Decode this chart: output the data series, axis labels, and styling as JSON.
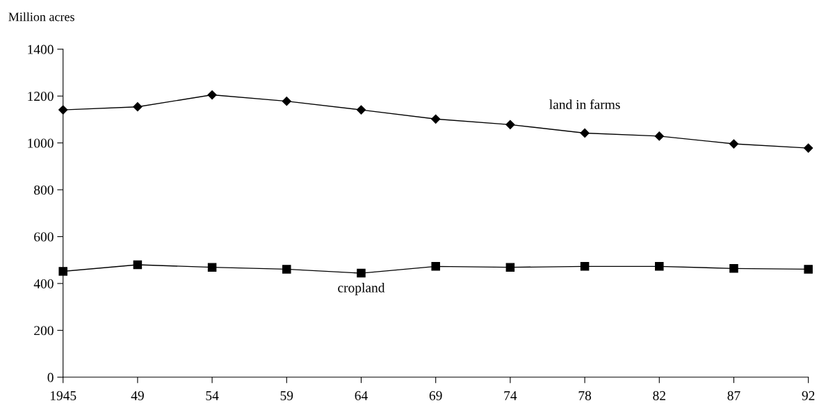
{
  "chart_data": {
    "type": "line",
    "ylabel": "Million acres",
    "categories": [
      "1945",
      "49",
      "54",
      "59",
      "64",
      "69",
      "74",
      "78",
      "82",
      "87",
      "92"
    ],
    "series": [
      {
        "name": "land in farms",
        "color": "#000000",
        "marker": "diamond",
        "values": [
          1141,
          1154,
          1205,
          1178,
          1141,
          1102,
          1078,
          1042,
          1029,
          996,
          978
        ]
      },
      {
        "name": "cropland",
        "color": "#000000",
        "marker": "square",
        "values": [
          452,
          480,
          469,
          461,
          444,
          473,
          469,
          473,
          473,
          464,
          461
        ]
      }
    ],
    "ylim": [
      0,
      1400
    ],
    "yticks": [
      0,
      200,
      400,
      600,
      800,
      1000,
      1200,
      1400
    ],
    "grid": false,
    "legend": false,
    "line_style": "solid"
  }
}
